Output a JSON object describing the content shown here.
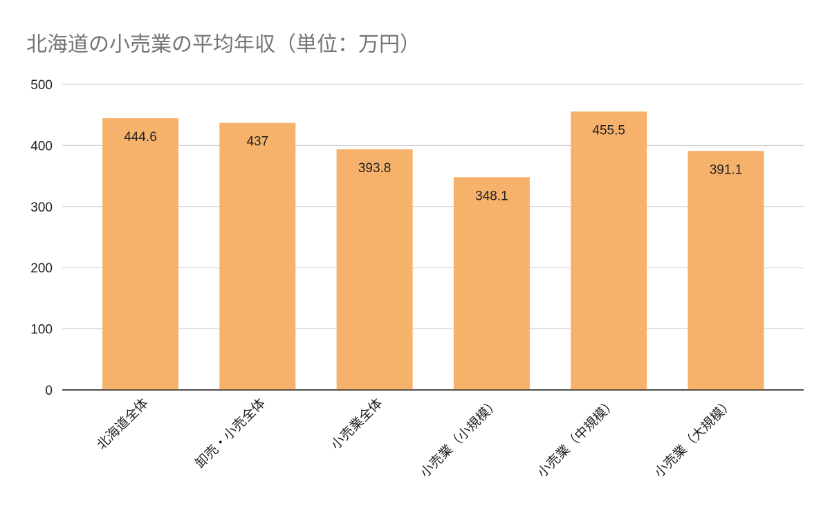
{
  "chart_data": {
    "type": "bar",
    "title": "北海道の小売業の平均年収（単位：万円）",
    "xlabel": "",
    "ylabel": "",
    "categories": [
      "北海道全体",
      "卸売・小売全体",
      "小売業全体",
      "小売業（小規模）",
      "小売業（中規模）",
      "小売業（大規模）"
    ],
    "values": [
      444.6,
      437,
      393.8,
      348.1,
      455.5,
      391.1
    ],
    "data_labels": [
      "444.6",
      "437",
      "393.8",
      "348.1",
      "455.5",
      "391.1"
    ],
    "ylim": [
      0,
      500
    ],
    "yticks": [
      0,
      100,
      200,
      300,
      400,
      500
    ],
    "ytick_labels": [
      "0",
      "100",
      "200",
      "300",
      "400",
      "500"
    ],
    "grid": true,
    "legend": "none",
    "colors": {
      "bar": "#f6b26b",
      "grid": "#cccccc",
      "axis": "#333333",
      "title": "#757575"
    }
  }
}
